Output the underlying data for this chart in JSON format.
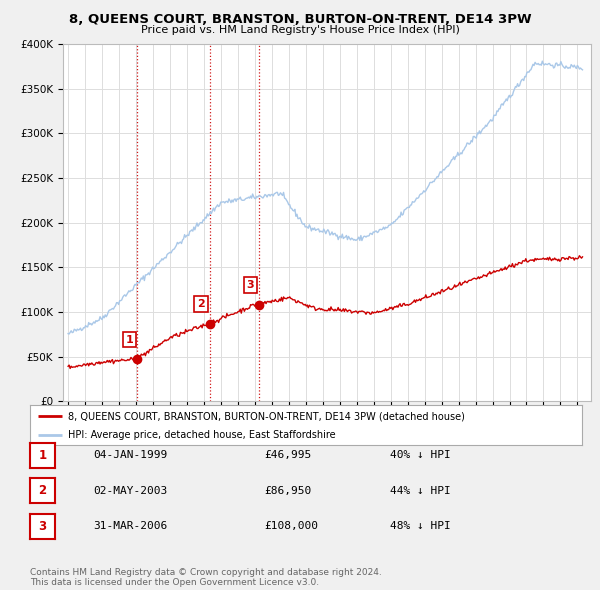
{
  "title": "8, QUEENS COURT, BRANSTON, BURTON-ON-TRENT, DE14 3PW",
  "subtitle": "Price paid vs. HM Land Registry's House Price Index (HPI)",
  "ylim": [
    0,
    400000
  ],
  "legend_line1": "8, QUEENS COURT, BRANSTON, BURTON-ON-TRENT, DE14 3PW (detached house)",
  "legend_line2": "HPI: Average price, detached house, East Staffordshire",
  "sale_color": "#cc0000",
  "hpi_color": "#aac8e8",
  "sale_points": [
    {
      "year": 1999.03,
      "price": 46995,
      "label": "1"
    },
    {
      "year": 2003.33,
      "price": 86950,
      "label": "2"
    },
    {
      "year": 2006.25,
      "price": 108000,
      "label": "3"
    }
  ],
  "table_data": [
    [
      "1",
      "04-JAN-1999",
      "£46,995",
      "40% ↓ HPI"
    ],
    [
      "2",
      "02-MAY-2003",
      "£86,950",
      "44% ↓ HPI"
    ],
    [
      "3",
      "31-MAR-2006",
      "£108,000",
      "48% ↓ HPI"
    ]
  ],
  "footer_text": "Contains HM Land Registry data © Crown copyright and database right 2024.\nThis data is licensed under the Open Government Licence v3.0.",
  "bg_color": "#f0f0f0",
  "plot_bg_color": "#ffffff",
  "grid_color": "#dddddd"
}
